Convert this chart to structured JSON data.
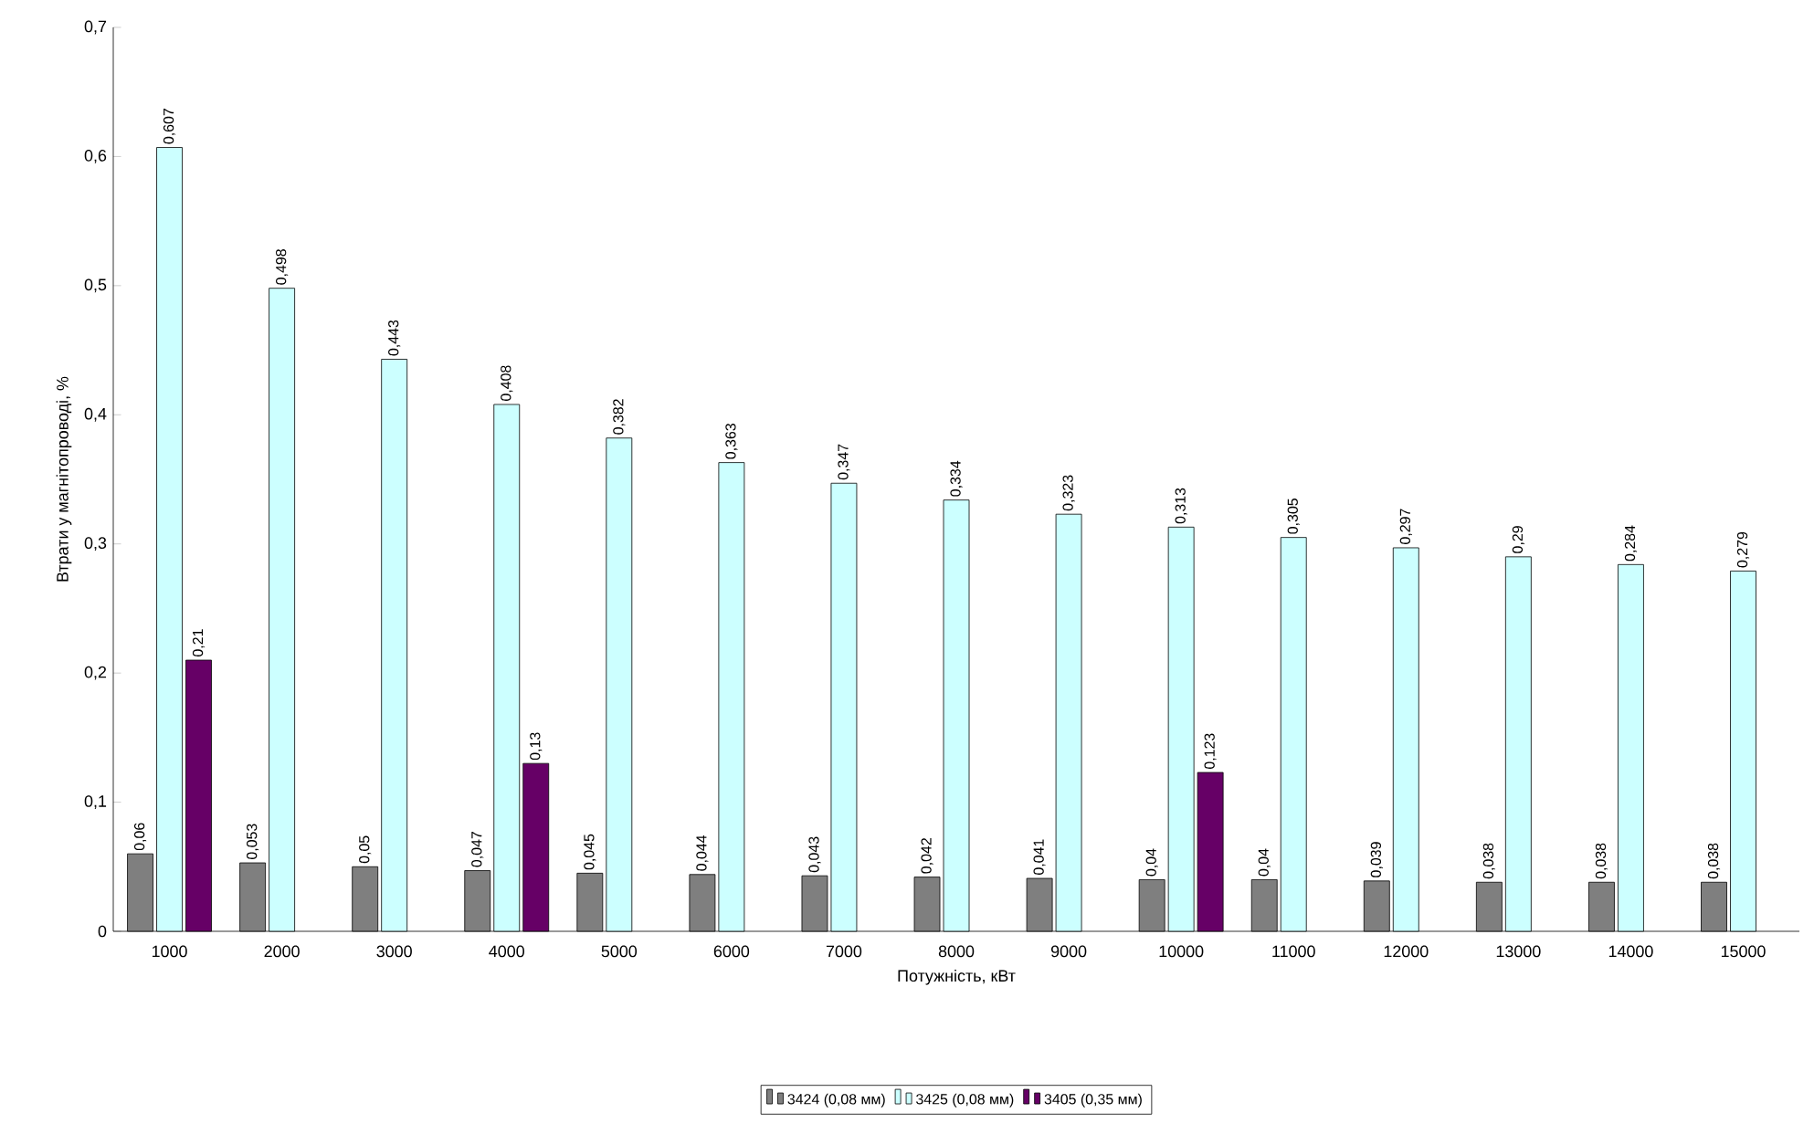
{
  "chart_data": {
    "type": "bar",
    "xlabel": "Потужність, кВт",
    "ylabel": "Втрати у магнітопроводі, %",
    "categories": [
      "1000",
      "2000",
      "3000",
      "4000",
      "5000",
      "6000",
      "7000",
      "8000",
      "9000",
      "10000",
      "11000",
      "12000",
      "13000",
      "14000",
      "15000"
    ],
    "series": [
      {
        "name": "3424 (0,08 мм)",
        "color": "#7f7f7f",
        "values": [
          0.06,
          0.053,
          0.05,
          0.047,
          0.045,
          0.044,
          0.043,
          0.042,
          0.041,
          0.04,
          0.04,
          0.039,
          0.038,
          0.038,
          0.038
        ],
        "value_labels": [
          "0,06",
          "0,053",
          "0,05",
          "0,047",
          "0,045",
          "0,044",
          "0,043",
          "0,042",
          "0,041",
          "0,04",
          "0,04",
          "0,039",
          "0,038",
          "0,038",
          "0,038"
        ]
      },
      {
        "name": "3425 (0,08 мм)",
        "color": "#ccffff",
        "values": [
          0.607,
          0.498,
          0.443,
          0.408,
          0.382,
          0.363,
          0.347,
          0.334,
          0.323,
          0.313,
          0.305,
          0.297,
          0.29,
          0.284,
          0.279
        ],
        "value_labels": [
          "0,607",
          "0,498",
          "0,443",
          "0,408",
          "0,382",
          "0,363",
          "0,347",
          "0,334",
          "0,323",
          "0,313",
          "0,305",
          "0,297",
          "0,29",
          "0,284",
          "0,279"
        ]
      },
      {
        "name": "3405 (0,35 мм)",
        "color": "#660066",
        "values": [
          0.21,
          null,
          null,
          0.13,
          null,
          null,
          null,
          null,
          null,
          0.123,
          null,
          null,
          null,
          null,
          null
        ],
        "value_labels": [
          "0,21",
          null,
          null,
          "0,13",
          null,
          null,
          null,
          null,
          null,
          "0,123",
          null,
          null,
          null,
          null,
          null
        ]
      }
    ],
    "ylim": [
      0,
      0.7
    ],
    "yticks": [
      0,
      {
        "value": 0.1,
        "label": "0,1"
      },
      {
        "value": 0.2,
        "label": "0,2"
      },
      {
        "value": 0.3,
        "label": "0,3"
      },
      {
        "value": 0.4,
        "label": "0,4"
      },
      {
        "value": 0.5,
        "label": "0,5"
      },
      {
        "value": 0.6,
        "label": "0,6"
      },
      {
        "value": 0.7,
        "label": "0,7"
      }
    ],
    "grid": false,
    "legend": "bottom"
  }
}
